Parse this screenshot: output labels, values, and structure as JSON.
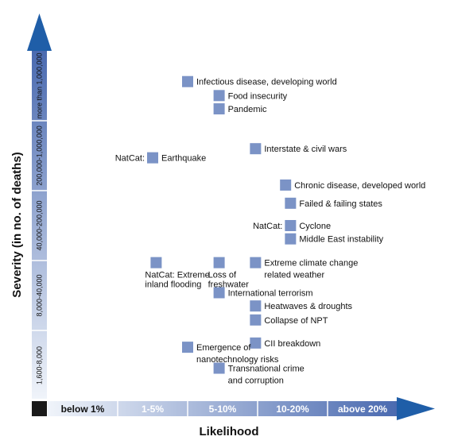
{
  "chart_data": {
    "type": "scatter",
    "xlabel": "Likelihood",
    "ylabel": "Severity (in no. of deaths)",
    "x_categories": [
      "below 1%",
      "1-5%",
      "5-10%",
      "10-20%",
      "above 20%"
    ],
    "y_categories": [
      "1,600-8,000",
      "8,000-40,000",
      "40,000-200,000",
      "200,000-1,000,000",
      "more than 1,000,000"
    ],
    "points": [
      {
        "label": [
          "Infectious disease, developing world"
        ],
        "x": 2.0,
        "y": 4.56
      },
      {
        "label": [
          "Food insecurity"
        ],
        "x": 2.45,
        "y": 4.36
      },
      {
        "label": [
          "Pandemic"
        ],
        "x": 2.45,
        "y": 4.17
      },
      {
        "label": [
          "Interstate & civil wars"
        ],
        "x": 2.97,
        "y": 3.6
      },
      {
        "label": [
          "NatCat:",
          "Earthquake"
        ],
        "x": 1.5,
        "y": 3.47
      },
      {
        "label": [
          "Chronic disease, developed world"
        ],
        "x": 3.4,
        "y": 3.08
      },
      {
        "label": [
          "Failed & failing states"
        ],
        "x": 3.47,
        "y": 2.82
      },
      {
        "label": [
          "NatCat:",
          "Cyclone"
        ],
        "x": 3.47,
        "y": 2.5
      },
      {
        "label": [
          "Middle East instability"
        ],
        "x": 3.47,
        "y": 2.31
      },
      {
        "label": [
          "NatCat: Extreme",
          "inland flooding"
        ],
        "x": 1.55,
        "y": 1.97
      },
      {
        "label": [
          "Loss of",
          "freshwater"
        ],
        "x": 2.45,
        "y": 1.97
      },
      {
        "label": [
          "Extreme climate change",
          "related weather"
        ],
        "x": 2.97,
        "y": 1.97
      },
      {
        "label": [
          "International terrorism"
        ],
        "x": 2.45,
        "y": 1.54
      },
      {
        "label": [
          "Heatwaves & droughts"
        ],
        "x": 2.97,
        "y": 1.35
      },
      {
        "label": [
          "Collapse of NPT"
        ],
        "x": 2.97,
        "y": 1.15
      },
      {
        "label": [
          "CII breakdown"
        ],
        "x": 2.97,
        "y": 0.82
      },
      {
        "label": [
          "Emergence of",
          "nanotechnology risks"
        ],
        "x": 2.0,
        "y": 0.76
      },
      {
        "label": [
          "Transnational crime",
          "and corruption"
        ],
        "x": 2.45,
        "y": 0.46
      }
    ],
    "colors": {
      "marker": "#7b93c6",
      "axis_dark": "#1f5ea8",
      "axis_light": "#e6ecf6",
      "corner": "#1a1a1a"
    }
  }
}
